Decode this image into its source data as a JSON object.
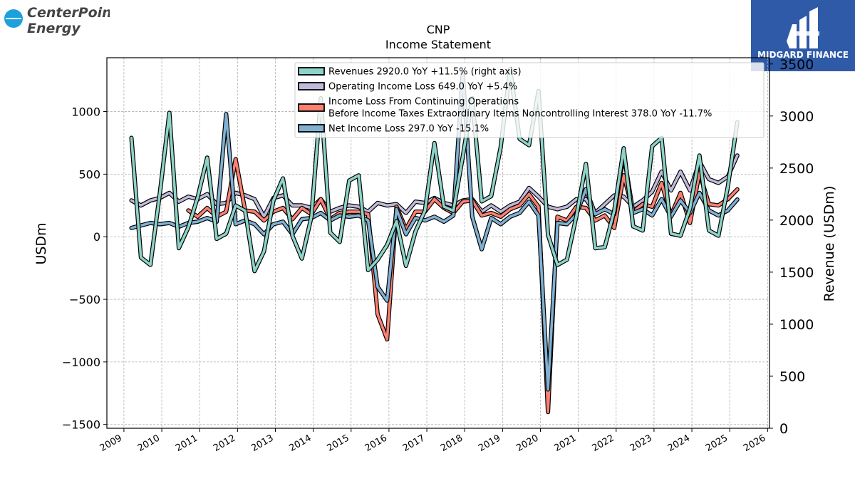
{
  "brand": {
    "left_logo_line1": "CenterPoint.",
    "left_logo_line2": "Energy",
    "right_logo_text": "MIDGARD FINANCE"
  },
  "chart_data": {
    "type": "line",
    "title": "CNP",
    "subtitle": "Income Statement",
    "ylabel": "USDm",
    "ylabel_right": "Revenue (USDm)",
    "ylim": [
      -1530,
      1430
    ],
    "ylim_right": [
      0,
      3560
    ],
    "yticks": [
      -1500,
      -1000,
      -500,
      0,
      500,
      1000
    ],
    "ytick_labels": [
      "−1500",
      "−1000",
      "−500",
      "0",
      "500",
      "1000"
    ],
    "yticks_right": [
      0,
      500,
      1000,
      1500,
      2000,
      2500,
      3000,
      3500
    ],
    "xlim": [
      2008.55,
      2026.05
    ],
    "xticks": [
      2009,
      2010,
      2011,
      2012,
      2013,
      2014,
      2015,
      2016,
      2017,
      2018,
      2019,
      2020,
      2021,
      2022,
      2023,
      2024,
      2025,
      2026
    ],
    "grid": true,
    "legend_position": "top-center",
    "x": [
      2009.2,
      2009.45,
      2009.7,
      2009.95,
      2010.2,
      2010.45,
      2010.7,
      2010.95,
      2011.2,
      2011.45,
      2011.7,
      2011.95,
      2012.2,
      2012.45,
      2012.7,
      2012.95,
      2013.2,
      2013.45,
      2013.7,
      2013.95,
      2014.2,
      2014.45,
      2014.7,
      2014.95,
      2015.2,
      2015.45,
      2015.7,
      2015.95,
      2016.2,
      2016.45,
      2016.7,
      2016.95,
      2017.2,
      2017.45,
      2017.7,
      2017.95,
      2018.2,
      2018.45,
      2018.7,
      2018.95,
      2019.2,
      2019.45,
      2019.7,
      2019.95,
      2020.2,
      2020.45,
      2020.7,
      2020.95,
      2021.2,
      2021.45,
      2021.7,
      2021.95,
      2022.2,
      2022.45,
      2022.7,
      2022.95,
      2023.2,
      2023.45,
      2023.7,
      2023.95,
      2024.2,
      2024.45,
      2024.7,
      2024.95,
      2025.2
    ],
    "series": [
      {
        "name": "Revenues  2920.0 YoY +11.5% (right axis)",
        "axis": "right",
        "color": "#8dd3c7",
        "values": [
          2790,
          1640,
          1570,
          2260,
          3030,
          1730,
          1930,
          2220,
          2600,
          1820,
          1870,
          2140,
          2090,
          1510,
          1700,
          2190,
          2400,
          1850,
          1630,
          2030,
          3170,
          1880,
          1790,
          2380,
          2430,
          1520,
          1620,
          1760,
          1990,
          1560,
          1890,
          2090,
          2740,
          2130,
          2090,
          2610,
          3170,
          2180,
          2230,
          2700,
          3450,
          2780,
          2720,
          3240,
          1860,
          1570,
          1620,
          2040,
          2540,
          1730,
          1740,
          2090,
          2690,
          1940,
          1900,
          2710,
          2790,
          1870,
          1850,
          2110,
          2620,
          1900,
          1850,
          2320,
          2940
        ]
      },
      {
        "name": "Operating Income Loss  649.0 YoY +5.4%",
        "axis": "left",
        "color": "#bebada",
        "values": [
          290,
          250,
          290,
          310,
          350,
          280,
          320,
          300,
          340,
          260,
          270,
          350,
          330,
          300,
          160,
          310,
          330,
          250,
          250,
          230,
          300,
          200,
          230,
          250,
          240,
          200,
          270,
          250,
          260,
          190,
          280,
          270,
          310,
          270,
          250,
          290,
          300,
          200,
          250,
          200,
          250,
          280,
          390,
          320,
          240,
          220,
          240,
          300,
          300,
          190,
          260,
          330,
          320,
          240,
          290,
          360,
          520,
          370,
          520,
          370,
          600,
          460,
          430,
          480,
          649
        ]
      },
      {
        "name": "Income Loss From Continuing Operations\nBefore Income Taxes Extraordinary Items Noncontrolling Interest  378.0 YoY -11.7%",
        "axis": "left",
        "color": "#fb8072",
        "values": [
          null,
          null,
          null,
          null,
          null,
          null,
          210,
          160,
          230,
          160,
          200,
          620,
          210,
          200,
          130,
          200,
          230,
          140,
          230,
          180,
          300,
          140,
          190,
          200,
          200,
          180,
          -620,
          -820,
          240,
          60,
          200,
          200,
          300,
          230,
          190,
          280,
          290,
          170,
          190,
          160,
          220,
          250,
          340,
          240,
          -1400,
          160,
          130,
          240,
          230,
          130,
          170,
          70,
          490,
          200,
          260,
          240,
          430,
          170,
          350,
          110,
          510,
          260,
          250,
          300,
          378
        ]
      },
      {
        "name": "Net Income Loss  297.0 YoY -15.1%",
        "axis": "left",
        "color": "#80b1d3",
        "values": [
          70,
          90,
          110,
          100,
          110,
          80,
          110,
          120,
          150,
          120,
          980,
          100,
          130,
          100,
          20,
          100,
          120,
          20,
          140,
          150,
          190,
          130,
          170,
          160,
          170,
          130,
          -400,
          -510,
          220,
          20,
          150,
          130,
          160,
          120,
          170,
          1310,
          160,
          -100,
          150,
          100,
          160,
          190,
          280,
          170,
          -1220,
          110,
          100,
          180,
          380,
          180,
          220,
          180,
          660,
          190,
          220,
          170,
          300,
          160,
          290,
          190,
          350,
          210,
          170,
          210,
          297
        ]
      }
    ]
  }
}
